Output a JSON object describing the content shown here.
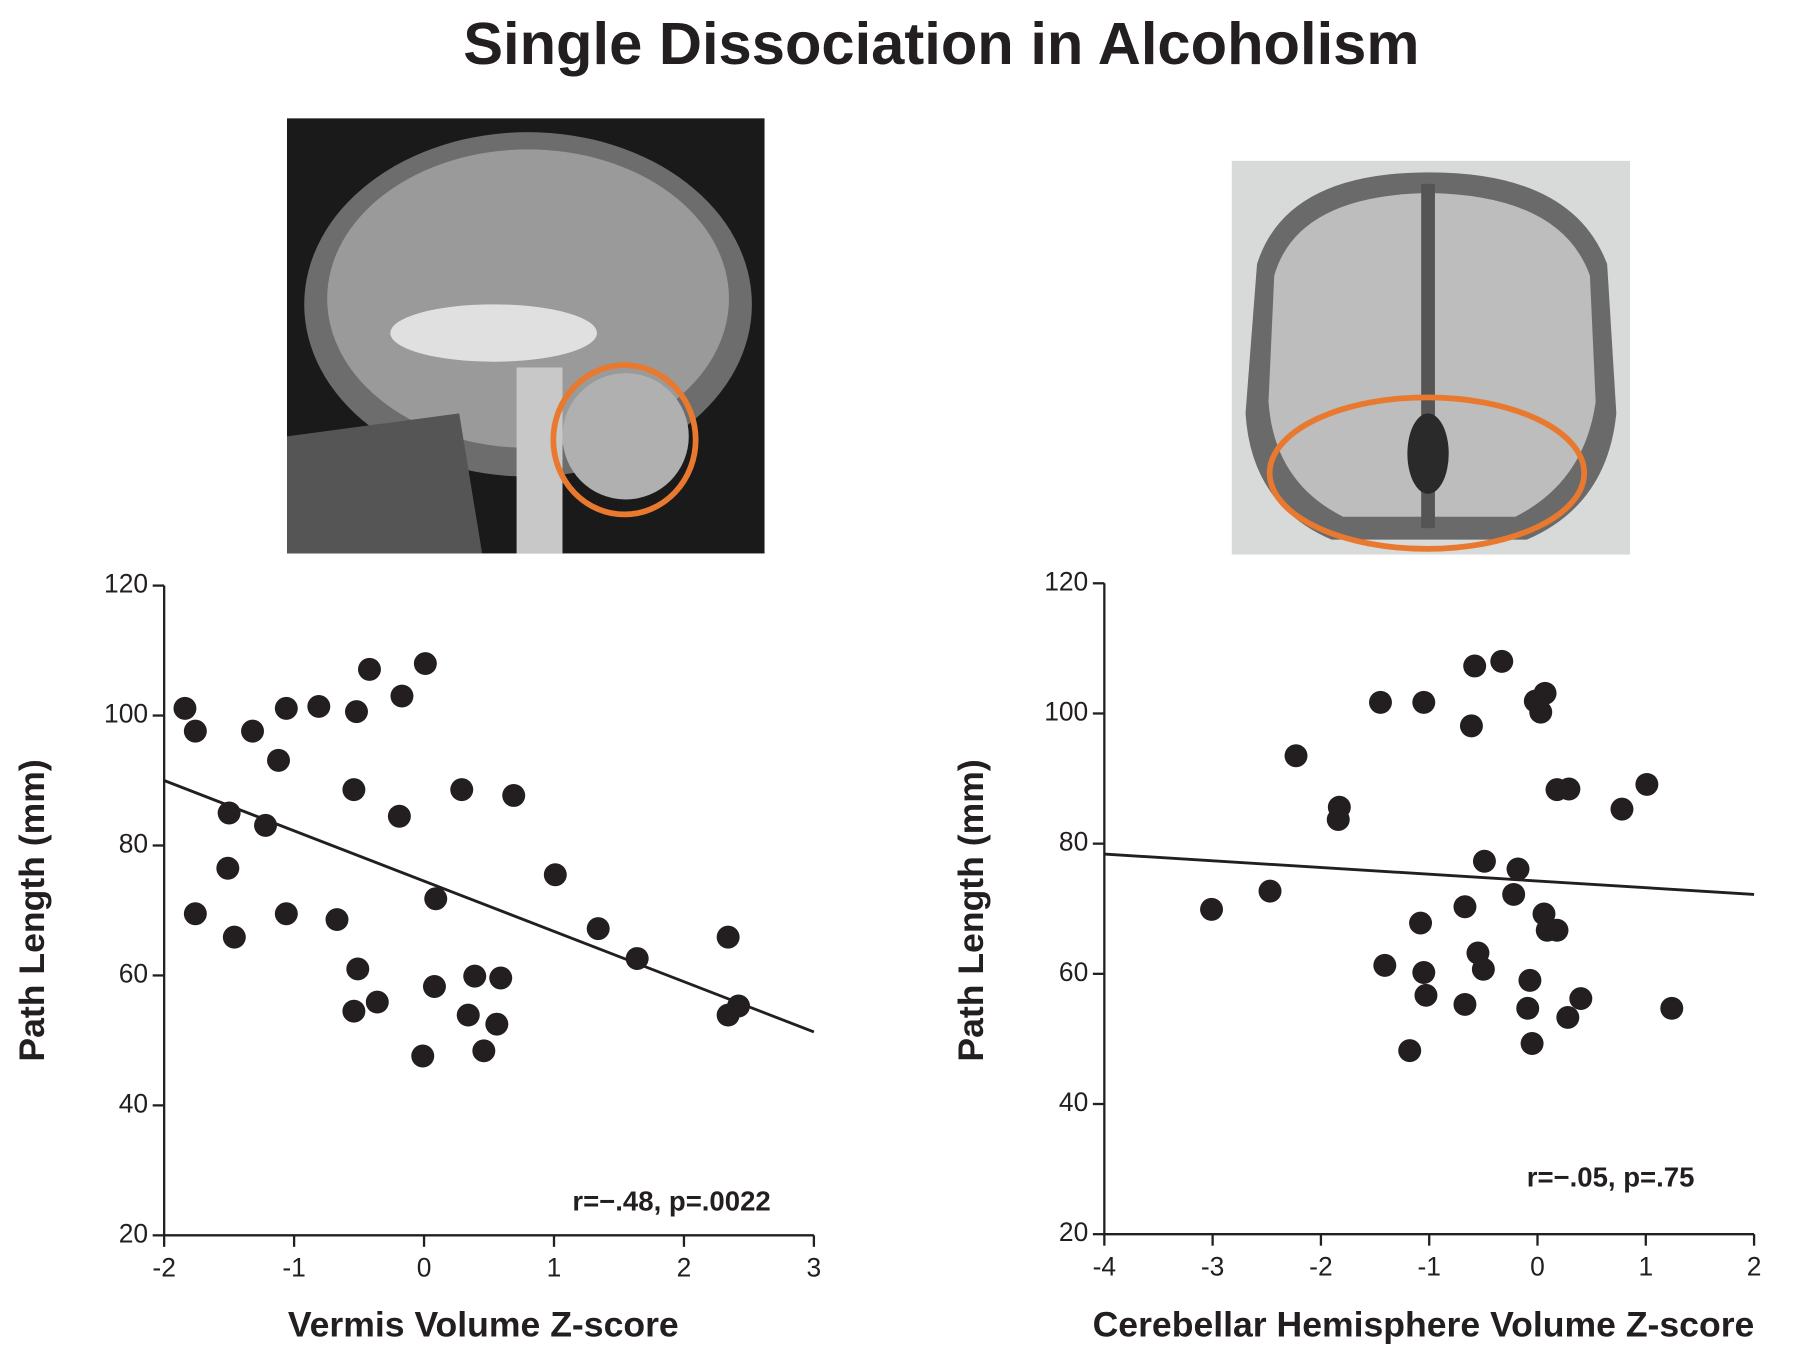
{
  "title": "Single Dissociation in Alcoholism",
  "chart_data": [
    {
      "type": "scatter",
      "xlabel": "Vermis Volume Z-score",
      "ylabel": "Path Length (mm)",
      "annotation": "r=−.48, p=.0022",
      "color": "#231f20",
      "x": [
        -1.84,
        -1.76,
        -1.32,
        -1.06,
        -0.81,
        -0.52,
        -0.42,
        0.01,
        -0.17,
        -1.12,
        -0.54,
        -1.5,
        -1.22,
        -0.19,
        0.29,
        0.69,
        -1.51,
        1.01,
        0.09,
        -1.76,
        -1.06,
        -0.67,
        -1.46,
        1.34,
        1.64,
        2.34,
        -0.51,
        0.08,
        0.39,
        0.59,
        -0.54,
        -0.36,
        0.34,
        0.56,
        0.46,
        -0.01,
        2.34,
        2.42
      ],
      "values": [
        101.1,
        97.6,
        97.6,
        101.1,
        101.4,
        100.6,
        107.1,
        108.0,
        103.0,
        93.1,
        88.6,
        85.0,
        83.1,
        84.5,
        88.6,
        87.7,
        76.5,
        75.5,
        71.8,
        69.5,
        69.5,
        68.6,
        65.9,
        67.2,
        62.6,
        65.9,
        61.0,
        58.3,
        59.9,
        59.6,
        54.5,
        55.9,
        53.9,
        52.5,
        48.4,
        47.6,
        53.9,
        55.3
      ],
      "fit": {
        "x": [
          -2,
          3
        ],
        "y": [
          90,
          51.3
        ]
      },
      "xlim": [
        -2,
        3
      ],
      "xticks": [
        -2,
        -1,
        0,
        1,
        2,
        3
      ],
      "ylim": [
        20,
        120
      ],
      "yticks": [
        20,
        40,
        60,
        80,
        100,
        120
      ]
    },
    {
      "type": "scatter",
      "xlabel": "Cerebellar Hemisphere Volume Z-score",
      "ylabel": "Path Length (mm)",
      "annotation": "r=−.05, p=.75",
      "color": "#231f20",
      "x": [
        -0.33,
        -0.58,
        0.07,
        -0.02,
        0.03,
        -1.45,
        -1.05,
        -0.61,
        -2.23,
        -1.83,
        -1.84,
        0.18,
        0.29,
        1.01,
        0.78,
        -0.49,
        -0.18,
        -0.22,
        -2.47,
        -3.01,
        -0.67,
        0.06,
        0.09,
        0.18,
        -1.08,
        -0.55,
        -1.41,
        -0.5,
        -1.05,
        -0.07,
        -1.03,
        0.4,
        -0.67,
        -0.09,
        0.28,
        1.24,
        -1.18,
        -0.05
      ],
      "values": [
        108.0,
        107.3,
        103.1,
        101.9,
        100.2,
        101.7,
        101.7,
        98.1,
        93.5,
        85.6,
        83.7,
        88.3,
        88.4,
        89.1,
        85.3,
        77.3,
        76.1,
        72.2,
        72.7,
        69.9,
        70.3,
        69.2,
        66.7,
        66.7,
        67.8,
        63.2,
        61.3,
        60.7,
        60.2,
        59.0,
        56.7,
        56.2,
        55.3,
        54.7,
        53.3,
        54.7,
        48.2,
        49.3
      ],
      "fit": {
        "x": [
          -4,
          2
        ],
        "y": [
          78.4,
          72.2
        ]
      },
      "xlim": [
        -4,
        2
      ],
      "xticks": [
        -4,
        -3,
        -2,
        -1,
        0,
        1,
        2
      ],
      "ylim": [
        20,
        120
      ],
      "yticks": [
        20,
        40,
        60,
        80,
        100,
        120
      ]
    }
  ]
}
